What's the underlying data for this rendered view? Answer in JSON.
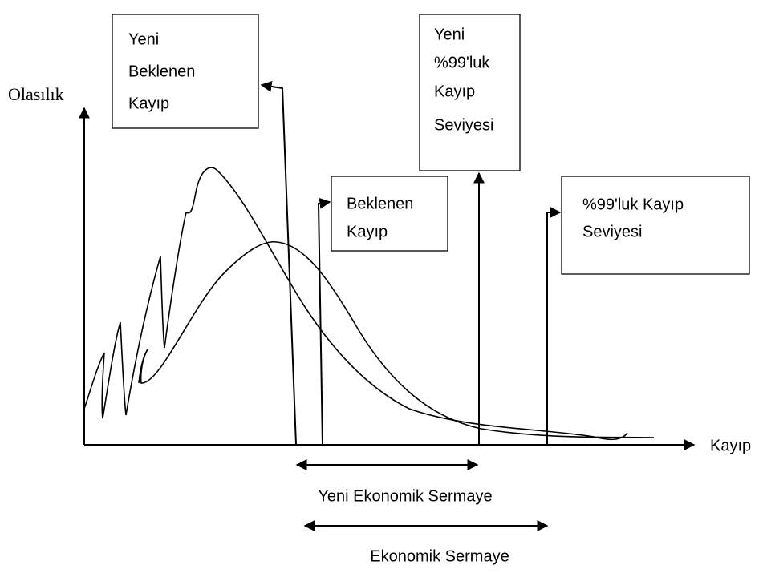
{
  "y_axis_label": "Olasılık",
  "x_axis_label": "Kayıp",
  "boxes": [
    {
      "lines": [
        "Yeni",
        "Beklenen",
        "Kayıp"
      ]
    },
    {
      "lines": [
        "Yeni",
        "%99'luk",
        "Kayıp",
        "Seviyesi"
      ]
    },
    {
      "lines": [
        "Beklenen",
        "Kayıp"
      ]
    },
    {
      "lines": [
        "%99'luk Kayıp",
        "Seviyesi"
      ]
    }
  ],
  "spans": [
    {
      "label": "Yeni Ekonomik Sermaye"
    },
    {
      "label": "Ekonomik Sermaye"
    }
  ]
}
